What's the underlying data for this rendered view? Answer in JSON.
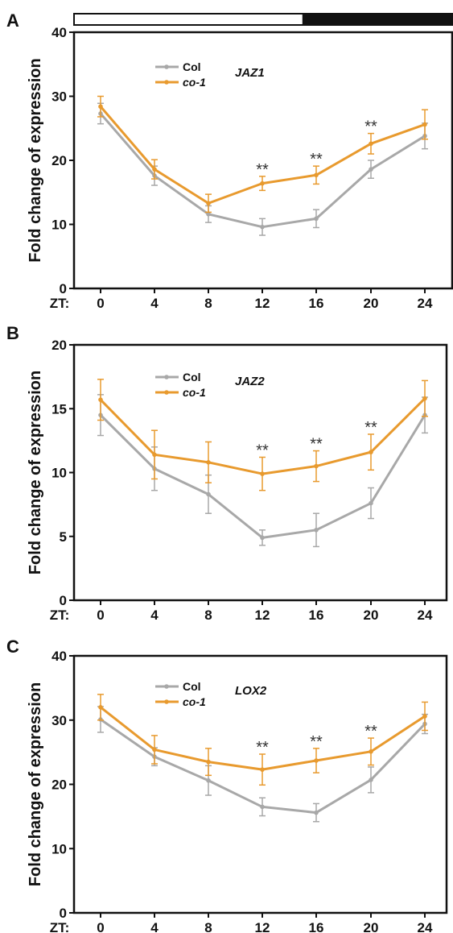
{
  "colors": {
    "col": "#a8a8a8",
    "co1": "#e89a2e",
    "axis": "#111111"
  },
  "light_dark_bar": {
    "light_end_zt": 15,
    "dark_end_zt": 24
  },
  "chart_data": [
    {
      "type": "line",
      "panel": "A",
      "gene": "JAZ1",
      "ylabel": "Fold change of expression",
      "x_prefix": "ZT:",
      "x": [
        0,
        4,
        8,
        12,
        16,
        20,
        24
      ],
      "xticks": [
        "0",
        "4",
        "8",
        "12",
        "16",
        "20",
        "24"
      ],
      "ylim": [
        0,
        40
      ],
      "yticks": [
        "0",
        "10",
        "20",
        "30",
        "40"
      ],
      "legend": "top-left",
      "grid": false,
      "series": [
        {
          "name": "Col",
          "key": "col",
          "values": [
            27.3,
            17.6,
            11.6,
            9.6,
            10.9,
            18.6,
            23.8
          ],
          "errors": [
            1.6,
            1.5,
            1.3,
            1.3,
            1.4,
            1.4,
            2.0
          ]
        },
        {
          "name": "co-1",
          "key": "co1",
          "values": [
            28.4,
            18.6,
            13.3,
            16.4,
            17.7,
            22.6,
            25.6
          ],
          "errors": [
            1.6,
            1.5,
            1.4,
            1.1,
            1.4,
            1.6,
            2.3
          ]
        }
      ],
      "significance": [
        {
          "x": 12,
          "label": "**"
        },
        {
          "x": 16,
          "label": "**"
        },
        {
          "x": 20,
          "label": "**"
        }
      ]
    },
    {
      "type": "line",
      "panel": "B",
      "gene": "JAZ2",
      "ylabel": "Fold change of expression",
      "x_prefix": "ZT:",
      "x": [
        0,
        4,
        8,
        12,
        16,
        20,
        24
      ],
      "xticks": [
        "0",
        "4",
        "8",
        "12",
        "16",
        "20",
        "24"
      ],
      "ylim": [
        0,
        20
      ],
      "yticks": [
        "0",
        "5",
        "10",
        "15",
        "20"
      ],
      "legend": "top-left",
      "grid": false,
      "series": [
        {
          "name": "Col",
          "key": "col",
          "values": [
            14.5,
            10.3,
            8.3,
            4.9,
            5.5,
            7.6,
            14.5
          ],
          "errors": [
            1.6,
            1.7,
            1.5,
            0.6,
            1.3,
            1.2,
            1.4
          ]
        },
        {
          "name": "co-1",
          "key": "co1",
          "values": [
            15.7,
            11.4,
            10.8,
            9.9,
            10.5,
            11.6,
            15.8
          ],
          "errors": [
            1.6,
            1.9,
            1.6,
            1.3,
            1.2,
            1.4,
            1.4
          ]
        }
      ],
      "significance": [
        {
          "x": 12,
          "label": "**"
        },
        {
          "x": 16,
          "label": "**"
        },
        {
          "x": 20,
          "label": "**"
        }
      ]
    },
    {
      "type": "line",
      "panel": "C",
      "gene": "LOX2",
      "ylabel": "Fold change of expression",
      "x_prefix": "ZT:",
      "x": [
        0,
        4,
        8,
        12,
        16,
        20,
        24
      ],
      "xticks": [
        "0",
        "4",
        "8",
        "12",
        "16",
        "20",
        "24"
      ],
      "ylim": [
        0,
        40
      ],
      "yticks": [
        "0",
        "10",
        "20",
        "30",
        "40"
      ],
      "legend": "top-left",
      "grid": false,
      "series": [
        {
          "name": "Col",
          "key": "col",
          "values": [
            30.1,
            24.3,
            20.6,
            16.5,
            15.6,
            20.7,
            29.4
          ],
          "errors": [
            2.0,
            1.4,
            2.3,
            1.4,
            1.4,
            2.0,
            1.5
          ]
        },
        {
          "name": "co-1",
          "key": "co1",
          "values": [
            32.0,
            25.4,
            23.5,
            22.3,
            23.7,
            25.1,
            30.6
          ],
          "errors": [
            2.0,
            2.2,
            2.1,
            2.4,
            1.9,
            2.1,
            2.2
          ]
        }
      ],
      "significance": [
        {
          "x": 12,
          "label": "**"
        },
        {
          "x": 16,
          "label": "**"
        },
        {
          "x": 20,
          "label": "**"
        }
      ]
    }
  ]
}
